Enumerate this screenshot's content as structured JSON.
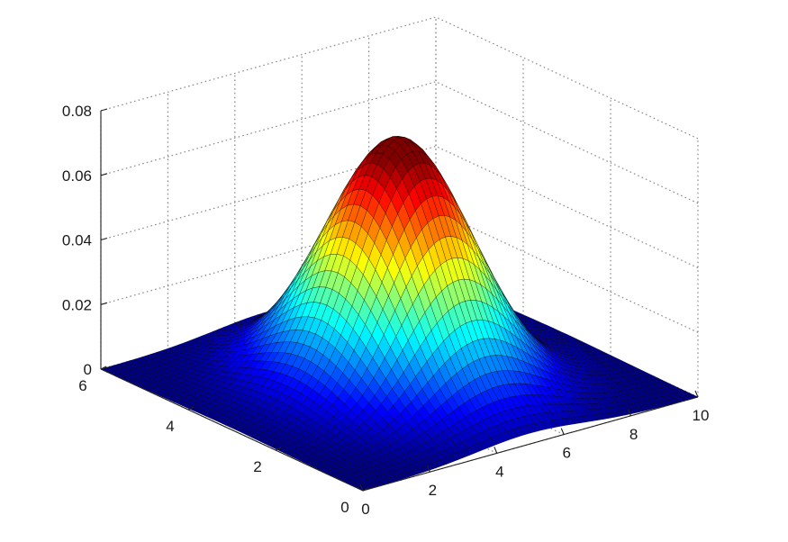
{
  "chart_data": {
    "type": "surface3d",
    "title": "",
    "xlabel": "",
    "ylabel": "",
    "zlabel": "",
    "xlim": [
      0,
      10
    ],
    "ylim": [
      0,
      6
    ],
    "zlim": [
      0,
      0.08
    ],
    "x_ticks": [
      0,
      2,
      4,
      6,
      8,
      10
    ],
    "y_ticks": [
      0,
      2,
      4,
      6
    ],
    "z_ticks": [
      0,
      0.02,
      0.04,
      0.06,
      0.08
    ],
    "x_tick_labels": [
      "0",
      "2",
      "4",
      "6",
      "8",
      "10"
    ],
    "y_tick_labels": [
      "0",
      "2",
      "4",
      "6"
    ],
    "z_tick_labels": [
      "0",
      "0.02",
      "0.04",
      "0.06",
      "0.08"
    ],
    "grid": true,
    "colormap": "jet",
    "edge_color": "#000000",
    "surface": {
      "function": "bivariate-gaussian",
      "peak_x": 5,
      "peak_y": 3,
      "sigma_x": 1.6,
      "sigma_y": 1.2,
      "peak_z": 0.076,
      "x_samples": 60,
      "y_samples": 40
    }
  }
}
